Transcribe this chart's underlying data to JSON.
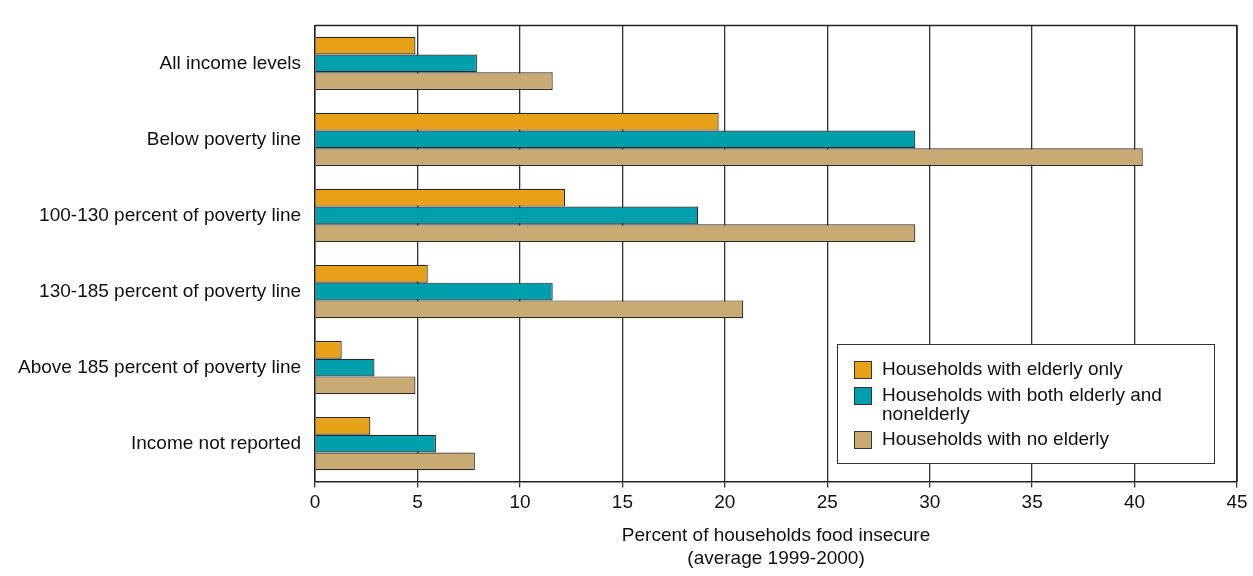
{
  "chart_data": {
    "type": "bar",
    "orientation": "horizontal",
    "categories": [
      "All income levels",
      "Below poverty line",
      "100-130 percent of poverty line",
      "130-185 percent of poverty line",
      "Above 185 percent of poverty line",
      "Income not reported"
    ],
    "series": [
      {
        "name": "Households with elderly only",
        "color": "#e6a118",
        "values": [
          4.9,
          19.7,
          12.2,
          5.5,
          1.3,
          2.7
        ]
      },
      {
        "name": "Households with both elderly and nonelderly",
        "color": "#009fae",
        "values": [
          7.9,
          29.3,
          18.7,
          11.6,
          2.9,
          5.9
        ]
      },
      {
        "name": "Households with no elderly",
        "color": "#c8aa72",
        "values": [
          11.6,
          40.4,
          29.3,
          20.9,
          4.9,
          7.8
        ]
      }
    ],
    "xlabel": "Percent of households food insecure\n(average 1999-2000)",
    "xlim": [
      0,
      45
    ],
    "xticks": [
      0,
      5,
      10,
      15,
      20,
      25,
      30,
      35,
      40,
      45
    ],
    "grid": "x",
    "legend": "bottom right"
  }
}
